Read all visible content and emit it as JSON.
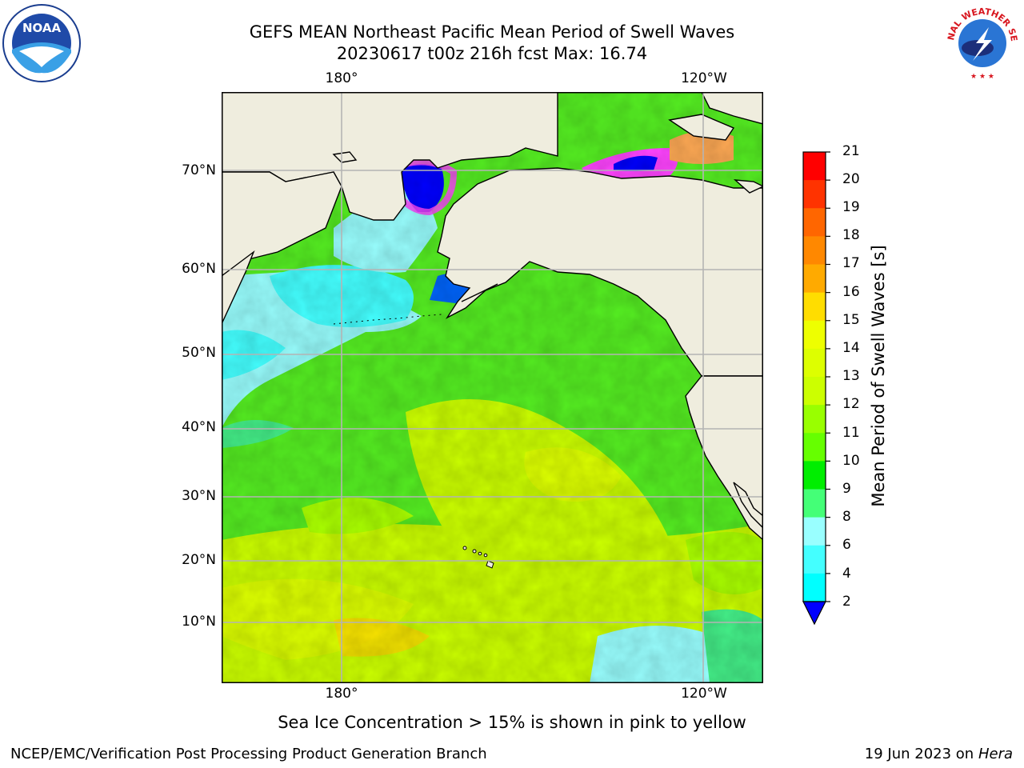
{
  "header": {
    "title": "GEFS MEAN Northeast Pacific Mean Period of Swell Waves",
    "subtitle": "20230617 t00z 216h fcst   Max: 16.74"
  },
  "logos": {
    "left": "NOAA",
    "right": "NATIONAL WEATHER SERVICE"
  },
  "map": {
    "lat_labels": [
      "70°N",
      "60°N",
      "50°N",
      "40°N",
      "30°N",
      "20°N",
      "10°N"
    ],
    "lon_labels_top": [
      "180°",
      "120°W"
    ],
    "lon_labels_bottom": [
      "180°",
      "120°W"
    ],
    "colors": {
      "land": "#efedde",
      "coast": "#000000",
      "grid": "#b4b4b4"
    }
  },
  "colorbar": {
    "label": "Mean Period of Swell Waves [s]",
    "ticks": [
      "21",
      "20",
      "19",
      "18",
      "17",
      "16",
      "15",
      "14",
      "13",
      "12",
      "11",
      "10",
      "9",
      "8",
      "6",
      "4",
      "2"
    ],
    "colors": [
      "#ff0000",
      "#ff3300",
      "#ff6600",
      "#ff8800",
      "#ffaa00",
      "#ffdd00",
      "#eeff00",
      "#ddff00",
      "#ccff00",
      "#99ff00",
      "#66ff00",
      "#00ee00",
      "#44ff77",
      "#99ffff",
      "#44ffff",
      "#00ffff",
      "#0099ff",
      "#0066ff"
    ],
    "under_color": "#0000ff"
  },
  "caption": "Sea Ice Concentration > 15% is shown in pink to yellow",
  "footer": {
    "left": "NCEP/EMC/Verification Post Processing Product Generation Branch",
    "right_date": "19 Jun 2023 on",
    "right_host": "Hera"
  }
}
